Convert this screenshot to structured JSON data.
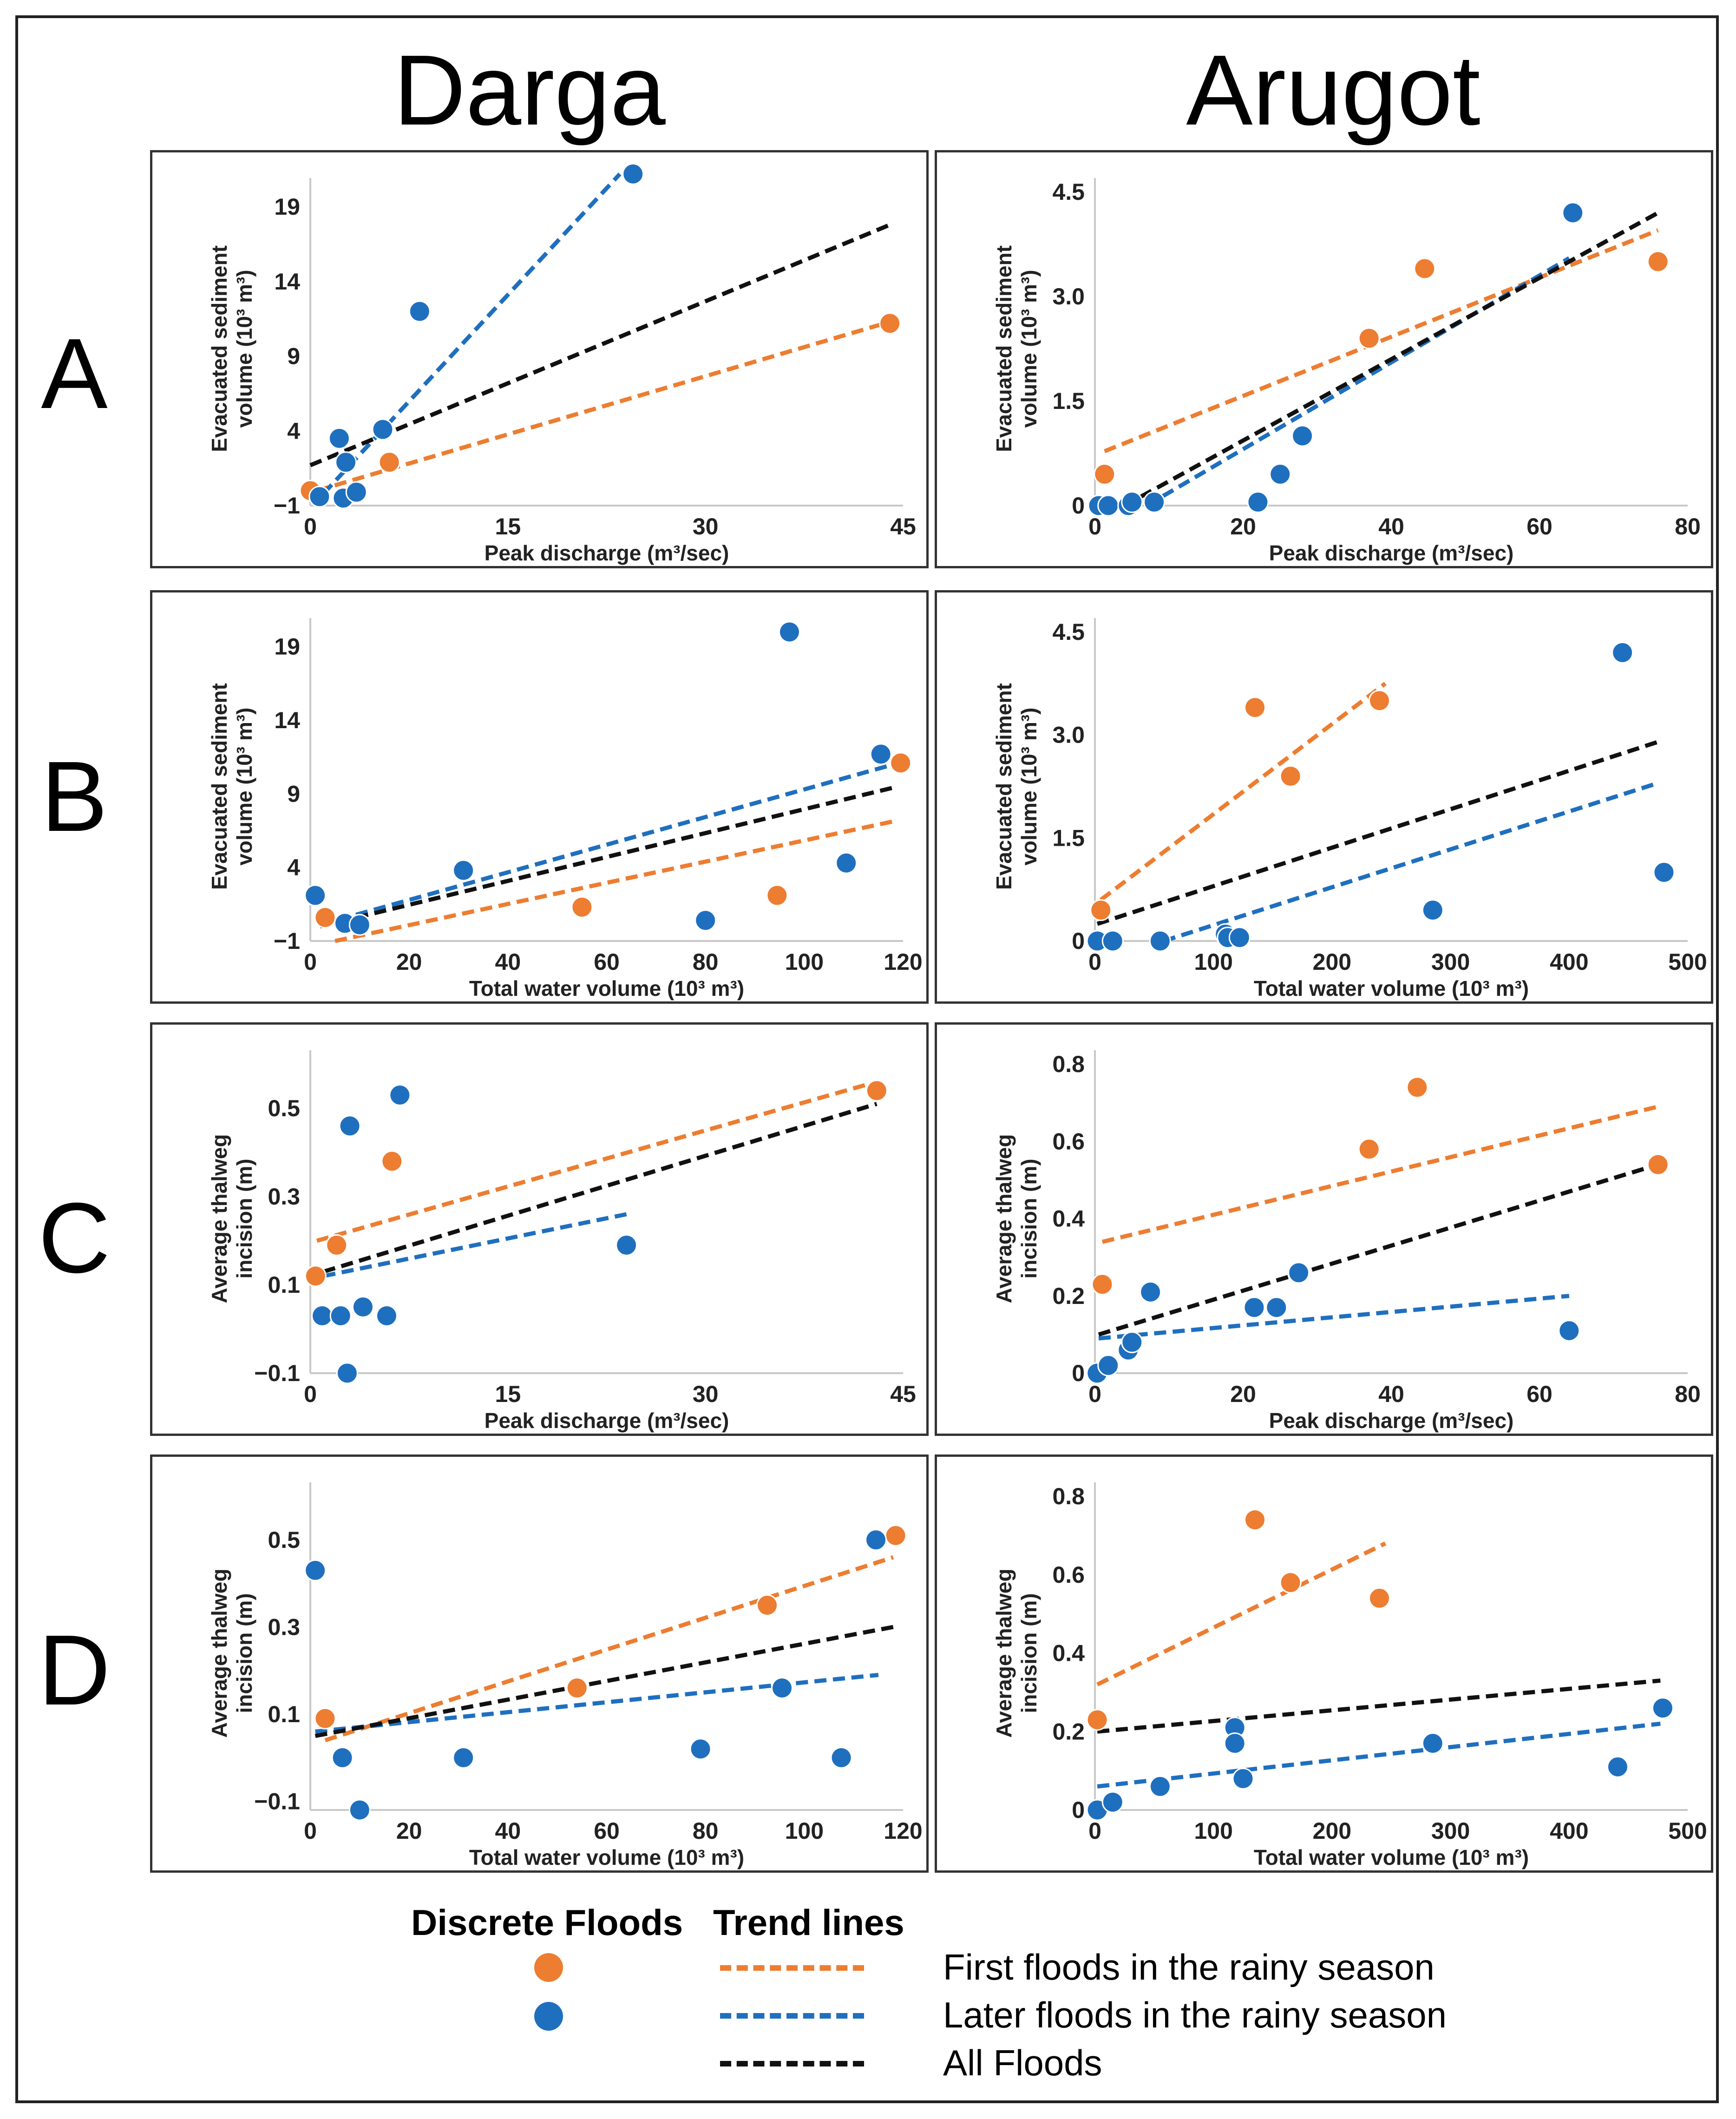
{
  "columns": [
    "Darga",
    "Arugot"
  ],
  "rows": [
    "A",
    "B",
    "C",
    "D"
  ],
  "colors": {
    "first": "#ed7d31",
    "later": "#1f6fbf",
    "all": "#111111"
  },
  "legend": {
    "points_title": "Discrete Floods",
    "lines_title": "Trend lines",
    "first": "First floods in the rainy season",
    "later": "Later floods in the rainy season",
    "all": "All Floods"
  },
  "chart_data": [
    {
      "id": "darga-A",
      "type": "scatter",
      "xlabel": "Peak discharge (m³/sec)",
      "ylabel": [
        "Evacuated sediment",
        "volume (10³ m³)"
      ],
      "xlim": [
        0,
        45
      ],
      "ylim": [
        -1,
        20
      ],
      "xticks": [
        0,
        15,
        30,
        45
      ],
      "xtick_labels": [
        "0",
        "15",
        "30",
        "45"
      ],
      "yticks": [
        -1,
        4,
        9,
        14,
        19
      ],
      "ytick_labels": [
        "−1",
        "4",
        "9",
        "14",
        "19"
      ],
      "series": [
        {
          "name": "First floods in the rainy season",
          "color": "first",
          "points": [
            [
              0,
              0
            ],
            [
              6,
              1.9
            ],
            [
              44,
              11.2
            ]
          ],
          "trend": [
            [
              0.5,
              0
            ],
            [
              44,
              11.3
            ]
          ]
        },
        {
          "name": "Later floods in the rainy season",
          "color": "later",
          "points": [
            [
              0.7,
              -0.4
            ],
            [
              2.2,
              3.5
            ],
            [
              2.5,
              -0.5
            ],
            [
              2.7,
              1.9
            ],
            [
              3.5,
              -0.1
            ],
            [
              5.5,
              4.1
            ],
            [
              8.3,
              12
            ],
            [
              24.5,
              21.2
            ]
          ],
          "trend": [
            [
              1,
              -0.2
            ],
            [
              23.5,
              21.2
            ]
          ]
        }
      ],
      "trends_all": [
        [
          0,
          1.7
        ],
        [
          44,
          17.8
        ]
      ]
    },
    {
      "id": "arugot-A",
      "type": "scatter",
      "xlabel": "Peak discharge (m³/sec)",
      "ylabel": [
        "Evacuated sediment",
        "volume (10³ m³)"
      ],
      "xlim": [
        0,
        80
      ],
      "ylim": [
        0,
        4.5
      ],
      "xticks": [
        0,
        20,
        40,
        60,
        80
      ],
      "xtick_labels": [
        "0",
        "20",
        "40",
        "60",
        "80"
      ],
      "yticks": [
        0,
        1.5,
        3.0,
        4.5
      ],
      "ytick_labels": [
        "0",
        "1.5",
        "3.0",
        "4.5"
      ],
      "series": [
        {
          "name": "First floods in the rainy season",
          "color": "first",
          "points": [
            [
              1.3,
              0.45
            ],
            [
              37,
              2.4
            ],
            [
              44.5,
              3.4
            ],
            [
              76,
              3.5
            ]
          ],
          "trend": [
            [
              1.3,
              0.78
            ],
            [
              76,
              3.95
            ]
          ]
        },
        {
          "name": "Later floods in the rainy season",
          "color": "later",
          "points": [
            [
              0.5,
              0
            ],
            [
              1.8,
              0
            ],
            [
              4.5,
              0
            ],
            [
              5,
              0.05
            ],
            [
              8,
              0.05
            ],
            [
              22,
              0.05
            ],
            [
              25,
              0.45
            ],
            [
              28,
              1.0
            ],
            [
              64.5,
              4.2
            ]
          ],
          "trend": [
            [
              7,
              0
            ],
            [
              64,
              3.55
            ]
          ]
        }
      ],
      "trends_all": [
        [
          4,
          0
        ],
        [
          76,
          4.2
        ]
      ]
    },
    {
      "id": "darga-B",
      "type": "scatter",
      "xlabel": "Total water volume (10³ m³)",
      "ylabel": [
        "Evacuated sediment",
        "volume (10³ m³)"
      ],
      "xlim": [
        0,
        120
      ],
      "ylim": [
        -1,
        20
      ],
      "xticks": [
        0,
        20,
        40,
        60,
        80,
        100,
        120
      ],
      "xtick_labels": [
        "0",
        "20",
        "40",
        "60",
        "80",
        "100",
        "120"
      ],
      "yticks": [
        -1,
        4,
        9,
        14,
        19
      ],
      "ytick_labels": [
        "−1",
        "4",
        "9",
        "14",
        "19"
      ],
      "series": [
        {
          "name": "First floods in the rainy season",
          "color": "first",
          "points": [
            [
              3,
              0.6
            ],
            [
              55,
              1.3
            ],
            [
              94.5,
              2.1
            ],
            [
              119.5,
              11.1
            ]
          ],
          "trend": [
            [
              5,
              -1
            ],
            [
              119,
              7.2
            ]
          ]
        },
        {
          "name": "Later floods in the rainy season",
          "color": "later",
          "points": [
            [
              1,
              2.1
            ],
            [
              7,
              0.2
            ],
            [
              10,
              0.1
            ],
            [
              31,
              3.8
            ],
            [
              80,
              0.4
            ],
            [
              97,
              20
            ],
            [
              108.5,
              4.3
            ],
            [
              115.5,
              11.7
            ]
          ],
          "trend": [
            [
              2,
              0.1
            ],
            [
              117,
              10.9
            ]
          ]
        }
      ],
      "trends_all": [
        [
          2,
          0
        ],
        [
          119,
          9.5
        ]
      ]
    },
    {
      "id": "arugot-B",
      "type": "scatter",
      "xlabel": "Total water volume (10³ m³)",
      "ylabel": [
        "Evacuated sediment",
        "volume (10³ m³)"
      ],
      "xlim": [
        0,
        500
      ],
      "ylim": [
        0,
        4.5
      ],
      "xticks": [
        0,
        100,
        200,
        300,
        400,
        500
      ],
      "xtick_labels": [
        "0",
        "100",
        "200",
        "300",
        "400",
        "500"
      ],
      "yticks": [
        0,
        1.5,
        3.0,
        4.5
      ],
      "ytick_labels": [
        "0",
        "1.5",
        "3.0",
        "4.5"
      ],
      "series": [
        {
          "name": "First floods in the rainy season",
          "color": "first",
          "points": [
            [
              5,
              0.45
            ],
            [
              135,
              3.4
            ],
            [
              165,
              2.4
            ],
            [
              240,
              3.5
            ]
          ],
          "trend": [
            [
              5,
              0.6
            ],
            [
              245,
              3.75
            ]
          ]
        },
        {
          "name": "Later floods in the rainy season",
          "color": "later",
          "points": [
            [
              2,
              0
            ],
            [
              15,
              0
            ],
            [
              55,
              0
            ],
            [
              110,
              0.1
            ],
            [
              112,
              0.05
            ],
            [
              122,
              0.05
            ],
            [
              285,
              0.45
            ],
            [
              445,
              4.2
            ],
            [
              480,
              1.0
            ]
          ],
          "trend": [
            [
              58,
              0
            ],
            [
              475,
              2.3
            ]
          ]
        }
      ],
      "trends_all": [
        [
          2,
          0.25
        ],
        [
          475,
          2.9
        ]
      ]
    },
    {
      "id": "darga-C",
      "type": "scatter",
      "xlabel": "Peak discharge (m³/sec)",
      "ylabel": [
        "Average thalweg",
        "incision (m)"
      ],
      "xlim": [
        0,
        45
      ],
      "ylim": [
        -0.1,
        0.6
      ],
      "xticks": [
        0,
        15,
        30,
        45
      ],
      "xtick_labels": [
        "0",
        "15",
        "30",
        "45"
      ],
      "yticks": [
        -0.1,
        0.1,
        0.3,
        0.5
      ],
      "ytick_labels": [
        "−0.1",
        "0.1",
        "0.3",
        "0.5"
      ],
      "series": [
        {
          "name": "First floods in the rainy season",
          "color": "first",
          "points": [
            [
              0.4,
              0.12
            ],
            [
              2,
              0.19
            ],
            [
              6.2,
              0.38
            ],
            [
              43,
              0.54
            ]
          ],
          "trend": [
            [
              0.5,
              0.2
            ],
            [
              43,
              0.56
            ]
          ]
        },
        {
          "name": "Later floods in the rainy season",
          "color": "later",
          "points": [
            [
              0.9,
              0.03
            ],
            [
              2.3,
              0.03
            ],
            [
              2.8,
              -0.1
            ],
            [
              3,
              0.46
            ],
            [
              4,
              0.05
            ],
            [
              5.8,
              0.03
            ],
            [
              6.8,
              0.53
            ],
            [
              24,
              0.19
            ]
          ],
          "trend": [
            [
              1,
              0.12
            ],
            [
              24,
              0.26
            ]
          ]
        }
      ],
      "trends_all": [
        [
          1,
          0.13
        ],
        [
          43,
          0.51
        ]
      ]
    },
    {
      "id": "arugot-C",
      "type": "scatter",
      "xlabel": "Peak discharge (m³/sec)",
      "ylabel": [
        "Average thalweg",
        "incision (m)"
      ],
      "xlim": [
        0,
        80
      ],
      "ylim": [
        0,
        0.8
      ],
      "xticks": [
        0,
        20,
        40,
        60,
        80
      ],
      "xtick_labels": [
        "0",
        "20",
        "40",
        "60",
        "80"
      ],
      "yticks": [
        0,
        0.2,
        0.4,
        0.6,
        0.8
      ],
      "ytick_labels": [
        "0",
        "0.2",
        "0.4",
        "0.6",
        "0.8"
      ],
      "series": [
        {
          "name": "First floods in the rainy season",
          "color": "first",
          "points": [
            [
              1,
              0.23
            ],
            [
              37,
              0.58
            ],
            [
              43.5,
              0.74
            ],
            [
              76,
              0.54
            ]
          ],
          "trend": [
            [
              1,
              0.34
            ],
            [
              76,
              0.69
            ]
          ]
        },
        {
          "name": "Later floods in the rainy season",
          "color": "later",
          "points": [
            [
              0.3,
              0
            ],
            [
              1.8,
              0.02
            ],
            [
              4.5,
              0.06
            ],
            [
              5,
              0.08
            ],
            [
              7.5,
              0.21
            ],
            [
              21.5,
              0.17
            ],
            [
              24.5,
              0.17
            ],
            [
              27.5,
              0.26
            ],
            [
              64,
              0.11
            ]
          ],
          "trend": [
            [
              0.5,
              0.09
            ],
            [
              64,
              0.2
            ]
          ]
        }
      ],
      "trends_all": [
        [
          0.5,
          0.1
        ],
        [
          76,
          0.54
        ]
      ]
    },
    {
      "id": "darga-D",
      "type": "scatter",
      "xlabel": "Total water volume (10³ m³)",
      "ylabel": [
        "Average thalweg",
        "incision (m)"
      ],
      "xlim": [
        0,
        120
      ],
      "ylim": [
        -0.12,
        0.6
      ],
      "xticks": [
        0,
        20,
        40,
        60,
        80,
        100,
        120
      ],
      "xtick_labels": [
        "0",
        "20",
        "40",
        "60",
        "80",
        "100",
        "120"
      ],
      "yticks": [
        -0.1,
        0.1,
        0.3,
        0.5
      ],
      "ytick_labels": [
        "−0.1",
        "0.1",
        "0.3",
        "0.5"
      ],
      "series": [
        {
          "name": "First floods in the rainy season",
          "color": "first",
          "points": [
            [
              3,
              0.09
            ],
            [
              54,
              0.16
            ],
            [
              92.5,
              0.35
            ],
            [
              118.5,
              0.51
            ]
          ],
          "trend": [
            [
              3,
              0.04
            ],
            [
              118,
              0.46
            ]
          ]
        },
        {
          "name": "Later floods in the rainy season",
          "color": "later",
          "points": [
            [
              1,
              0.43
            ],
            [
              6.5,
              0
            ],
            [
              10,
              -0.12
            ],
            [
              31,
              0
            ],
            [
              79,
              0.02
            ],
            [
              95.5,
              0.16
            ],
            [
              107.5,
              0
            ],
            [
              114.5,
              0.5
            ]
          ],
          "trend": [
            [
              1,
              0.06
            ],
            [
              115,
              0.19
            ]
          ]
        }
      ],
      "trends_all": [
        [
          1,
          0.05
        ],
        [
          118,
          0.3
        ]
      ]
    },
    {
      "id": "arugot-D",
      "type": "scatter",
      "xlabel": "Total water volume (10³ m³)",
      "ylabel": [
        "Average thalweg",
        "incision (m)"
      ],
      "xlim": [
        0,
        500
      ],
      "ylim": [
        0,
        0.8
      ],
      "xticks": [
        0,
        100,
        200,
        300,
        400,
        500
      ],
      "xtick_labels": [
        "0",
        "100",
        "200",
        "300",
        "400",
        "500"
      ],
      "yticks": [
        0,
        0.2,
        0.4,
        0.6,
        0.8
      ],
      "ytick_labels": [
        "0",
        "0.2",
        "0.4",
        "0.6",
        "0.8"
      ],
      "series": [
        {
          "name": "First floods in the rainy season",
          "color": "first",
          "points": [
            [
              2,
              0.23
            ],
            [
              135,
              0.74
            ],
            [
              165,
              0.58
            ],
            [
              240,
              0.54
            ]
          ],
          "trend": [
            [
              2,
              0.32
            ],
            [
              245,
              0.68
            ]
          ]
        },
        {
          "name": "Later floods in the rainy season",
          "color": "later",
          "points": [
            [
              2,
              0
            ],
            [
              15,
              0.02
            ],
            [
              55,
              0.06
            ],
            [
              118,
              0.21
            ],
            [
              118,
              0.17
            ],
            [
              125,
              0.08
            ],
            [
              285,
              0.17
            ],
            [
              441,
              0.11
            ],
            [
              479,
              0.26
            ]
          ],
          "trend": [
            [
              2,
              0.06
            ],
            [
              477,
              0.22
            ]
          ]
        }
      ],
      "trends_all": [
        [
          2,
          0.2
        ],
        [
          477,
          0.33
        ]
      ]
    }
  ]
}
